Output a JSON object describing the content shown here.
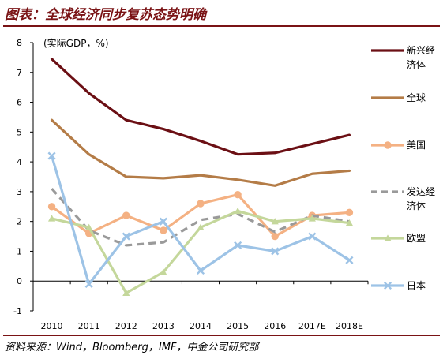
{
  "header": {
    "title": "图表：全球经济同步复苏态势明确"
  },
  "footer": {
    "source": "资料来源：Wind，Bloomberg，IMF，中金公司研究部"
  },
  "chart_data": {
    "type": "line",
    "title": "图表：全球经济同步复苏态势明确",
    "ylabel": "(实际GDP，%)",
    "xlabel": "",
    "categories": [
      "2010",
      "2011",
      "2012",
      "2013",
      "2014",
      "2015",
      "2016",
      "2017E",
      "2018E"
    ],
    "ylim": [
      -1,
      8
    ],
    "yticks": [
      -1,
      0,
      1,
      2,
      3,
      4,
      5,
      6,
      7,
      8
    ],
    "grid": false,
    "legend_position": "right",
    "series": [
      {
        "name": "新兴经济体",
        "legend_lines": [
          "新兴经",
          "济体"
        ],
        "color": "#6b0f14",
        "dash": "solid",
        "marker": "none",
        "values": [
          7.45,
          6.3,
          5.4,
          5.1,
          4.7,
          4.25,
          4.3,
          4.6,
          4.9
        ]
      },
      {
        "name": "全球",
        "legend_lines": [
          "全球"
        ],
        "color": "#b47c47",
        "dash": "solid",
        "marker": "none",
        "values": [
          5.4,
          4.25,
          3.5,
          3.45,
          3.55,
          3.4,
          3.2,
          3.6,
          3.7
        ]
      },
      {
        "name": "美国",
        "legend_lines": [
          "美国"
        ],
        "color": "#f4b183",
        "dash": "solid",
        "marker": "circle",
        "values": [
          2.5,
          1.6,
          2.2,
          1.7,
          2.6,
          2.9,
          1.5,
          2.2,
          2.3
        ]
      },
      {
        "name": "发达经济体",
        "legend_lines": [
          "发达经",
          "济体"
        ],
        "color": "#9a9a9a",
        "dash": "dash",
        "marker": "none",
        "values": [
          3.1,
          1.7,
          1.2,
          1.3,
          2.05,
          2.25,
          1.65,
          2.2,
          2.0
        ]
      },
      {
        "name": "欧盟",
        "legend_lines": [
          "欧盟"
        ],
        "color": "#c4d79b",
        "dash": "solid",
        "marker": "triangle",
        "values": [
          2.1,
          1.8,
          -0.4,
          0.3,
          1.8,
          2.35,
          2.0,
          2.1,
          1.95
        ]
      },
      {
        "name": "日本",
        "legend_lines": [
          "日本"
        ],
        "color": "#9dc3e6",
        "dash": "solid",
        "marker": "x",
        "values": [
          4.2,
          -0.1,
          1.5,
          2.0,
          0.35,
          1.2,
          1.0,
          1.5,
          0.7
        ]
      }
    ]
  }
}
